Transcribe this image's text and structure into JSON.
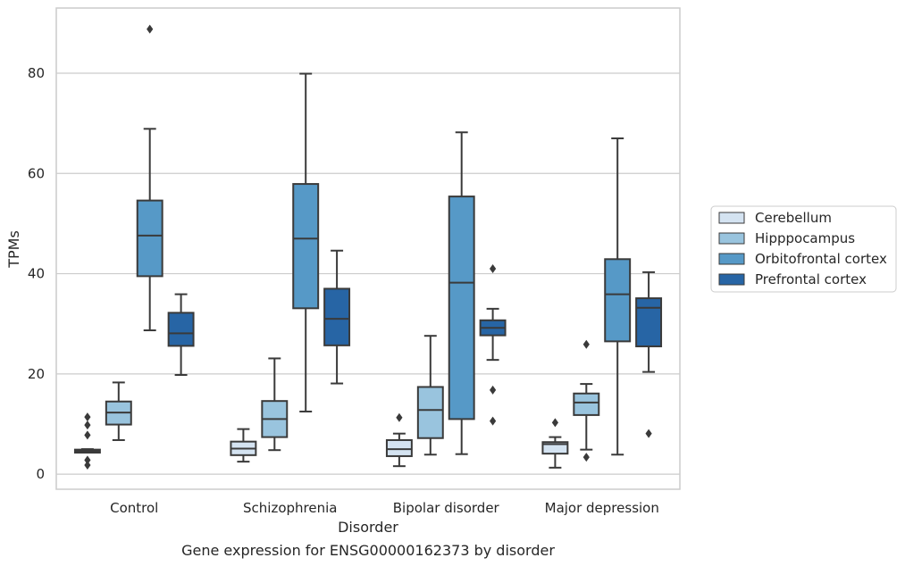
{
  "caption": "Gene expression for ENSG00000162373 by disorder",
  "colors": {
    "Cerebellum": "#d4e3f1",
    "Hipppocampus": "#99c4de",
    "Orbitofrontal cortex": "#5699c7",
    "Prefrontal cortex": "#2765a5",
    "line": "#3a3a3a",
    "grid": "#cccccc",
    "frame": "#cccccc"
  },
  "chart_data": {
    "type": "box",
    "xlabel": "Disorder",
    "ylabel": "TPMs",
    "ylim": [
      -3,
      93
    ],
    "yticks": [
      0,
      20,
      40,
      60,
      80
    ],
    "grid": "horizontal",
    "legend_position": "right",
    "categories": [
      "Control",
      "Schizophrenia",
      "Bipolar disorder",
      "Major depression"
    ],
    "series": [
      {
        "name": "Cerebellum",
        "boxes": [
          {
            "whislo": 4.3,
            "q1": 4.3,
            "med": 4.6,
            "q3": 4.9,
            "whishi": 5.0,
            "fliers": [
              1.8,
              2.8,
              7.8,
              9.8,
              11.4
            ]
          },
          {
            "whislo": 2.5,
            "q1": 3.8,
            "med": 5.1,
            "q3": 6.5,
            "whishi": 9.0,
            "fliers": []
          },
          {
            "whislo": 1.6,
            "q1": 3.6,
            "med": 5.0,
            "q3": 6.8,
            "whishi": 8.1,
            "fliers": [
              11.3
            ]
          },
          {
            "whislo": 1.3,
            "q1": 4.1,
            "med": 6.0,
            "q3": 6.4,
            "whishi": 7.4,
            "fliers": [
              10.3
            ]
          }
        ]
      },
      {
        "name": "Hipppocampus",
        "boxes": [
          {
            "whislo": 6.8,
            "q1": 9.9,
            "med": 12.3,
            "q3": 14.5,
            "whishi": 18.3,
            "fliers": []
          },
          {
            "whislo": 4.8,
            "q1": 7.4,
            "med": 11.0,
            "q3": 14.6,
            "whishi": 23.1,
            "fliers": []
          },
          {
            "whislo": 3.9,
            "q1": 7.2,
            "med": 12.8,
            "q3": 17.4,
            "whishi": 27.6,
            "fliers": []
          },
          {
            "whislo": 4.9,
            "q1": 11.8,
            "med": 14.3,
            "q3": 16.1,
            "whishi": 18.0,
            "fliers": [
              3.4,
              25.9
            ]
          }
        ]
      },
      {
        "name": "Orbitofrontal cortex",
        "boxes": [
          {
            "whislo": 28.7,
            "q1": 39.5,
            "med": 47.6,
            "q3": 54.6,
            "whishi": 68.9,
            "fliers": [
              88.8
            ]
          },
          {
            "whislo": 12.5,
            "q1": 33.1,
            "med": 47.0,
            "q3": 57.9,
            "whishi": 79.9,
            "fliers": []
          },
          {
            "whislo": 4.0,
            "q1": 11.0,
            "med": 38.2,
            "q3": 55.4,
            "whishi": 68.2,
            "fliers": []
          },
          {
            "whislo": 3.9,
            "q1": 26.5,
            "med": 35.9,
            "q3": 42.9,
            "whishi": 67.0,
            "fliers": []
          }
        ]
      },
      {
        "name": "Prefrontal cortex",
        "boxes": [
          {
            "whislo": 19.8,
            "q1": 25.6,
            "med": 28.1,
            "q3": 32.2,
            "whishi": 35.9,
            "fliers": []
          },
          {
            "whislo": 18.1,
            "q1": 25.7,
            "med": 31.0,
            "q3": 37.0,
            "whishi": 44.6,
            "fliers": []
          },
          {
            "whislo": 22.8,
            "q1": 27.7,
            "med": 29.2,
            "q3": 30.7,
            "whishi": 33.0,
            "fliers": [
              10.6,
              16.8,
              41.0
            ]
          },
          {
            "whislo": 20.4,
            "q1": 25.5,
            "med": 33.2,
            "q3": 35.1,
            "whishi": 40.3,
            "fliers": [
              8.1
            ]
          }
        ]
      }
    ]
  }
}
